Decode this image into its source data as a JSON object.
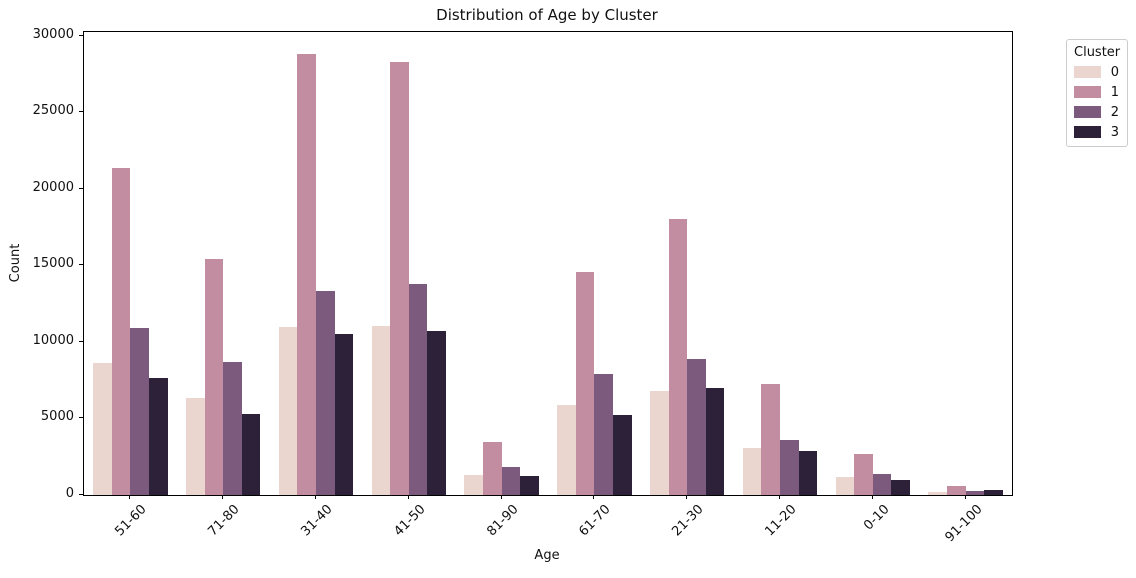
{
  "chart_data": {
    "type": "bar",
    "title": "Distribution of Age by Cluster",
    "xlabel": "Age",
    "ylabel": "Count",
    "legend_title": "Cluster",
    "legend_position": "upper right outside",
    "grid": false,
    "categories": [
      "51-60",
      "71-80",
      "31-40",
      "41-50",
      "81-90",
      "61-70",
      "21-30",
      "11-20",
      "0-10",
      "91-100"
    ],
    "series": [
      {
        "name": "0",
        "color": "#ead6cf",
        "values": [
          8600,
          6350,
          11000,
          11050,
          1330,
          5880,
          6800,
          3050,
          1180,
          200
        ]
      },
      {
        "name": "1",
        "color": "#c38da1",
        "values": [
          21400,
          15450,
          28800,
          28300,
          3460,
          14580,
          18060,
          7280,
          2700,
          600
        ]
      },
      {
        "name": "2",
        "color": "#7c5a7e",
        "values": [
          10930,
          8710,
          13330,
          13770,
          1810,
          7910,
          8910,
          3620,
          1370,
          280
        ]
      },
      {
        "name": "3",
        "color": "#2c2138",
        "values": [
          7650,
          5290,
          10540,
          10700,
          1220,
          5250,
          6990,
          2900,
          1000,
          340
        ]
      }
    ],
    "yticks": [
      0,
      5000,
      10000,
      15000,
      20000,
      25000,
      30000
    ],
    "ylim": [
      0,
      30260
    ],
    "bar_group_fill": 0.8
  }
}
